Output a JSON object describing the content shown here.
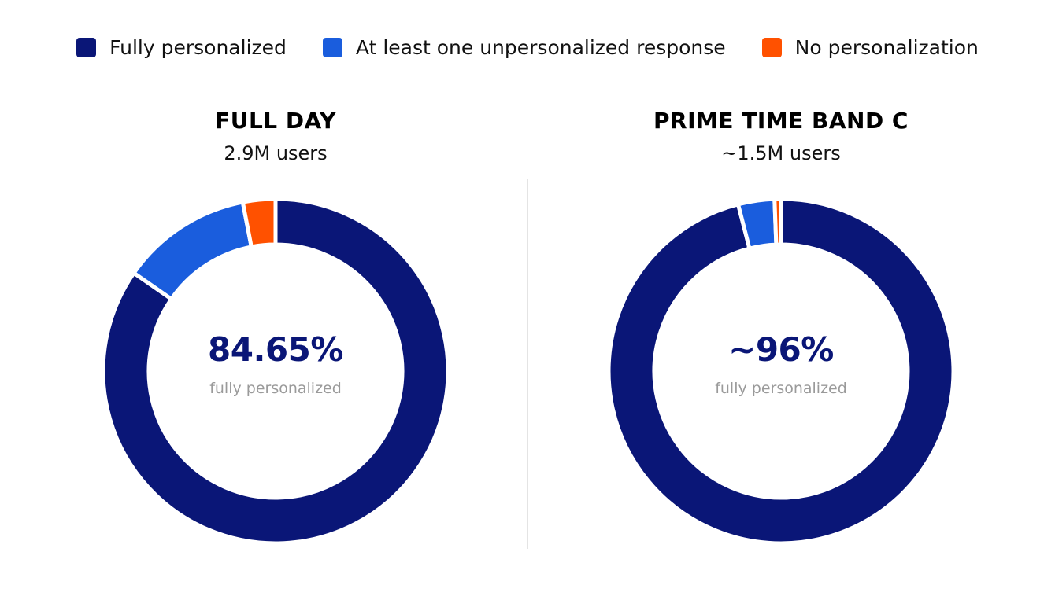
{
  "legend": {
    "items": [
      {
        "label": "Fully personalized",
        "color": "#0a1677"
      },
      {
        "label": "At least one unpersonalized response",
        "color": "#1a5ddd"
      },
      {
        "label": "No personalization",
        "color": "#ff5100"
      }
    ]
  },
  "chart_data": [
    {
      "type": "pie",
      "donut": true,
      "title": "FULL DAY",
      "subtitle": "2.9M users",
      "center_value": "84.65%",
      "center_label": "fully personalized",
      "categories": [
        "Fully personalized",
        "At least one unpersonalized response",
        "No personalization"
      ],
      "values": [
        84.65,
        12.3,
        3.05
      ],
      "colors": [
        "#0a1677",
        "#1a5ddd",
        "#ff5100"
      ]
    },
    {
      "type": "pie",
      "donut": true,
      "title": "PRIME TIME BAND C",
      "subtitle": "~1.5M users",
      "center_value": "~96%",
      "center_label": "fully personalized",
      "categories": [
        "Fully personalized",
        "At least one unpersonalized response",
        "No personalization"
      ],
      "values": [
        96,
        3.4,
        0.6
      ],
      "colors": [
        "#0a1677",
        "#1a5ddd",
        "#ff5100"
      ]
    }
  ]
}
